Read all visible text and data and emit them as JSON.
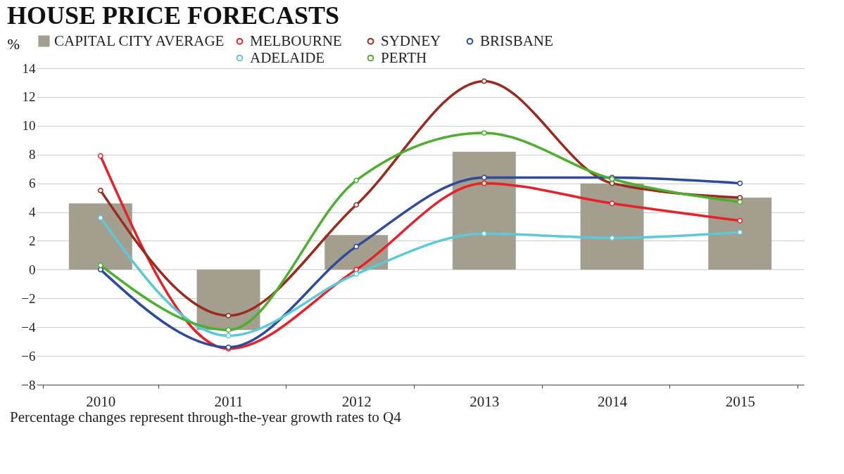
{
  "chart_data": {
    "type": "bar",
    "title": "HOUSE PRICE FORECASTS",
    "ylabel": "%",
    "categories": [
      "2010",
      "2011",
      "2012",
      "2013",
      "2014",
      "2015"
    ],
    "series": [
      {
        "name": "CAPITAL CITY AVERAGE",
        "color": "#a39e8e",
        "values": [
          4.6,
          -4.2,
          2.4,
          8.2,
          6.0,
          5.0
        ]
      },
      {
        "name": "MELBOURNE",
        "type": "line",
        "color": "#e8202a",
        "values": [
          7.9,
          -5.5,
          0.0,
          6.0,
          4.6,
          3.4
        ]
      },
      {
        "name": "SYDNEY",
        "type": "line",
        "color": "#9b2a1e",
        "values": [
          5.5,
          -3.2,
          4.5,
          13.1,
          6.0,
          5.0
        ]
      },
      {
        "name": "BRISBANE",
        "type": "line",
        "color": "#2e4b9b",
        "values": [
          0.0,
          -5.4,
          1.6,
          6.4,
          6.4,
          6.0
        ]
      },
      {
        "name": "ADELAIDE",
        "type": "line",
        "color": "#5cc8d8",
        "values": [
          3.6,
          -4.6,
          -0.3,
          2.5,
          2.2,
          2.6
        ]
      },
      {
        "name": "PERTH",
        "type": "line",
        "color": "#4cb02e",
        "values": [
          0.3,
          -4.2,
          6.2,
          9.5,
          6.3,
          4.7
        ]
      }
    ],
    "ylim": [
      -8,
      14
    ],
    "yticks": [
      -8,
      -6,
      -4,
      -2,
      0,
      2,
      4,
      6,
      8,
      10,
      12,
      14
    ],
    "grid": "y",
    "legend": "top",
    "marker": "circle",
    "annotations": [
      "Percentage changes represent through-the-year growth rates to Q4"
    ]
  }
}
